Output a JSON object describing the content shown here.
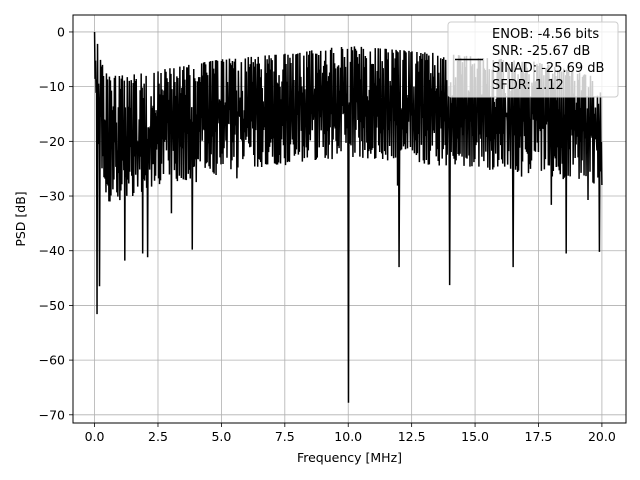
{
  "chart_data": {
    "type": "line",
    "title": "",
    "xlabel": "Frequency [MHz]",
    "ylabel": "PSD [dB]",
    "xlim": [
      -0.85,
      20.95
    ],
    "ylim": [
      -71.5,
      3.1
    ],
    "xticks": [
      0.0,
      2.5,
      5.0,
      7.5,
      10.0,
      12.5,
      15.0,
      17.5,
      20.0
    ],
    "xtick_labels": [
      "0.0",
      "2.5",
      "5.0",
      "7.5",
      "10.0",
      "12.5",
      "15.0",
      "17.5",
      "20.0"
    ],
    "yticks": [
      0,
      -10,
      -20,
      -30,
      -40,
      -50,
      -60,
      -70
    ],
    "ytick_labels": [
      "0",
      "−10",
      "−20",
      "−30",
      "−40",
      "−50",
      "−60",
      "−70"
    ],
    "grid": true,
    "legend_position": "top-right",
    "legend_lines": [
      "ENOB: -4.56 bits",
      "SNR: -25.67 dB",
      "SINAD: -25.69 dB",
      "SFDR: 1.12"
    ],
    "series": [
      {
        "color": "#000000",
        "x_start": 0.0,
        "x_end": 20.0,
        "n_points": 1024,
        "envelope_x": [
          0.0,
          0.5,
          1.0,
          2.5,
          5.0,
          7.5,
          10.0,
          12.5,
          15.0,
          17.5,
          20.0
        ],
        "envelope_max": [
          0,
          -8,
          -8,
          -7,
          -5,
          -4,
          -2.5,
          -3.5,
          -4.5,
          -5.5,
          -8.5
        ],
        "envelope_typ_min": [
          -18,
          -31,
          -31,
          -28,
          -26,
          -24,
          -23,
          -24,
          -25,
          -26,
          -28
        ],
        "notches": [
          {
            "x": 0.1,
            "y": -51.6
          },
          {
            "x": 0.2,
            "y": -46.5
          },
          {
            "x": 1.2,
            "y": -41.8
          },
          {
            "x": 1.9,
            "y": -40.5
          },
          {
            "x": 2.1,
            "y": -41.2
          },
          {
            "x": 3.85,
            "y": -39.8
          },
          {
            "x": 10.0,
            "y": -67.8
          },
          {
            "x": 12.0,
            "y": -43.0
          },
          {
            "x": 14.0,
            "y": -46.3
          },
          {
            "x": 16.5,
            "y": -43.0
          },
          {
            "x": 18.6,
            "y": -40.5
          },
          {
            "x": 19.9,
            "y": -40.2
          }
        ],
        "peak": {
          "x": 0.0,
          "y": 0.0
        }
      }
    ]
  }
}
